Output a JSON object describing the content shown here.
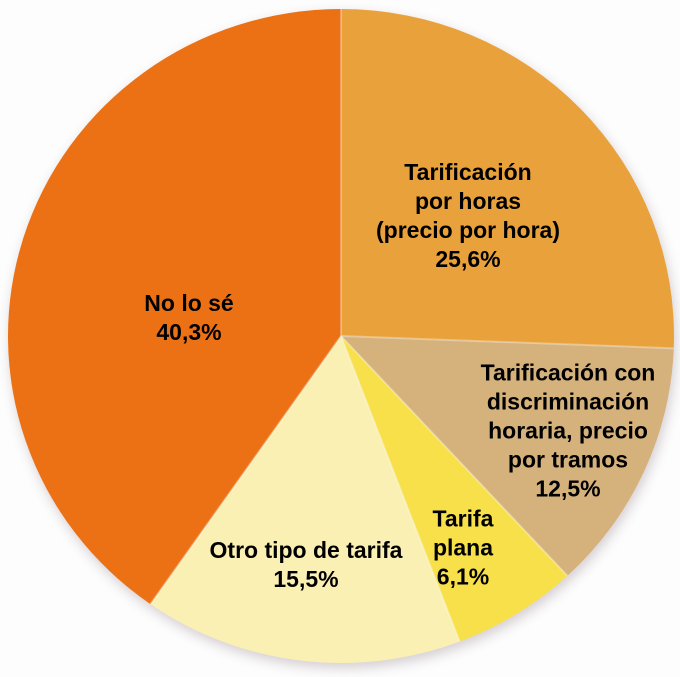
{
  "page": {
    "background_color": "#FDFDFD",
    "text_color": "#000000"
  },
  "chart_data": {
    "type": "pie",
    "direction": "clockwise",
    "start_angle_deg": 0,
    "legend": "none",
    "unit": "%",
    "decimal_separator": ",",
    "slices": [
      {
        "id": "tarificacion-por-horas",
        "label": "Tarificación por horas (precio por hora)",
        "label_lines": [
          "Tarificación",
          "por horas",
          "(precio por hora)"
        ],
        "value": 25.6,
        "pct_text": "25,6%",
        "color": "#E9A23B"
      },
      {
        "id": "tarificacion-discriminacion-horaria",
        "label": "Tarificación con discriminación horaria, precio por tramos",
        "label_lines": [
          "Tarificación con",
          "discriminación",
          "horaria, precio",
          "por tramos"
        ],
        "value": 12.5,
        "pct_text": "12,5%",
        "color": "#D5B17C"
      },
      {
        "id": "tarifa-plana",
        "label": "Tarifa plana",
        "label_lines": [
          "Tarifa",
          "plana"
        ],
        "value": 6.1,
        "pct_text": "6,1%",
        "color": "#F7E04A"
      },
      {
        "id": "otro-tipo-de-tarifa",
        "label": "Otro tipo de tarifa",
        "label_lines": [
          "Otro tipo de tarifa"
        ],
        "value": 15.5,
        "pct_text": "15,5%",
        "color": "#FAF0B3"
      },
      {
        "id": "no-lo-se",
        "label": "No lo sé",
        "label_lines": [
          "No lo sé"
        ],
        "value": 40.3,
        "pct_text": "40,3%",
        "color": "#EC7114"
      }
    ],
    "separator_color": "rgba(255,255,255,0.32)"
  }
}
